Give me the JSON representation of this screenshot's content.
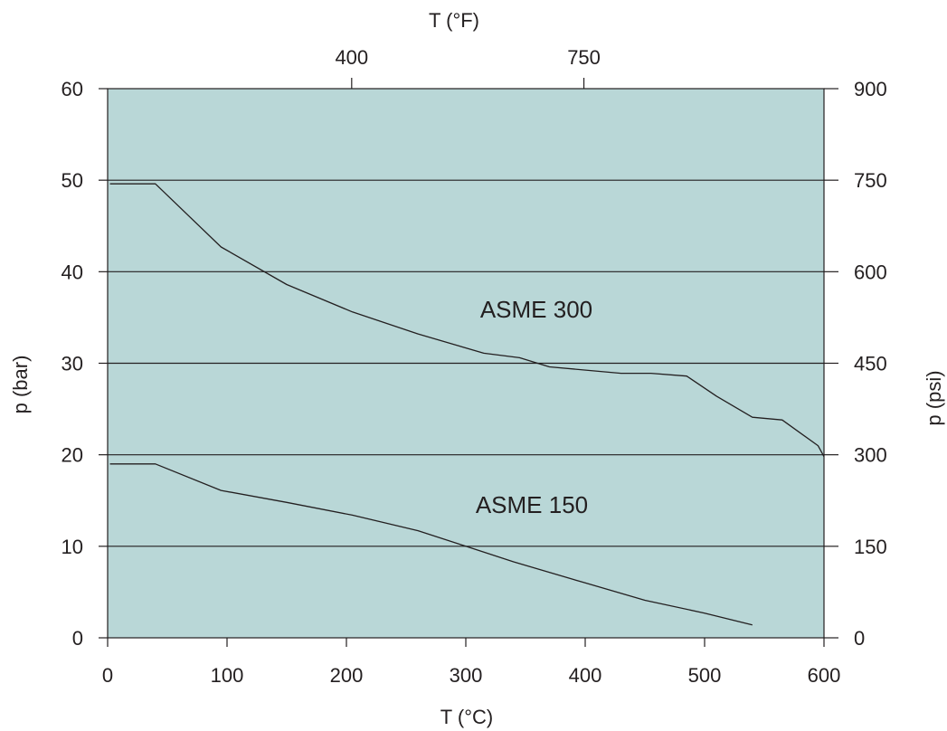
{
  "chart_data": {
    "type": "line",
    "xlabel": "T (°C)",
    "ylabel": "p (bar)",
    "xlim": [
      0,
      600
    ],
    "ylim": [
      0,
      60
    ],
    "x_ticks": [
      "0",
      "100",
      "200",
      "300",
      "400",
      "500",
      "600"
    ],
    "y_ticks": [
      "0",
      "10",
      "20",
      "30",
      "40",
      "50",
      "60"
    ],
    "secondary_x": {
      "label": "T (°F)",
      "ticks": [
        {
          "label": "400",
          "at_celsius": 204.4
        },
        {
          "label": "750",
          "at_celsius": 398.9
        }
      ]
    },
    "secondary_y": {
      "label": "p (psi)",
      "ticks": [
        {
          "label": "0",
          "at_bar": 0
        },
        {
          "label": "150",
          "at_bar": 10
        },
        {
          "label": "300",
          "at_bar": 20
        },
        {
          "label": "450",
          "at_bar": 30
        },
        {
          "label": "600",
          "at_bar": 40
        },
        {
          "label": "750",
          "at_bar": 50
        },
        {
          "label": "900",
          "at_bar": 60
        }
      ]
    },
    "grid": "horizontal",
    "plot_background": "#b9d7d7",
    "line_color": "#231f20",
    "series": [
      {
        "name": "ASME 300",
        "x": [
          2,
          40,
          95,
          150,
          205,
          260,
          315,
          345,
          370,
          430,
          455,
          485,
          510,
          540,
          565,
          595,
          600
        ],
        "y": [
          49.6,
          49.6,
          42.7,
          38.6,
          35.6,
          33.2,
          31.1,
          30.6,
          29.6,
          28.9,
          28.9,
          28.6,
          26.4,
          24.1,
          23.8,
          21.0,
          19.8
        ]
      },
      {
        "name": "ASME 150",
        "x": [
          2,
          40,
          95,
          150,
          205,
          260,
          300,
          340,
          400,
          450,
          500,
          540
        ],
        "y": [
          19.0,
          19.0,
          16.1,
          14.8,
          13.4,
          11.7,
          10.0,
          8.3,
          6.0,
          4.1,
          2.7,
          1.4
        ]
      }
    ]
  }
}
